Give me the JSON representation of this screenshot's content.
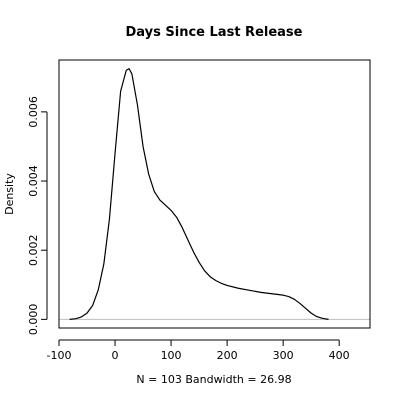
{
  "chart_data": {
    "type": "line",
    "title": "Days Since Last Release",
    "xlabel": "N = 103   Bandwidth = 26.98",
    "ylabel": "Density",
    "xlim": [
      -100,
      455
    ],
    "ylim": [
      -0.00025,
      0.0075
    ],
    "x_ticks": [
      -100,
      0,
      100,
      200,
      300,
      400
    ],
    "x_tick_labels": [
      "-100",
      "0",
      "100",
      "200",
      "300",
      "400"
    ],
    "y_ticks": [
      0.0,
      0.002,
      0.004,
      0.006
    ],
    "y_tick_labels": [
      "0.000",
      "0.002",
      "0.004",
      "0.006"
    ],
    "baseline": 0,
    "baseline_color": "#bebebe",
    "line_color": "#000000",
    "grid": false,
    "series": [
      {
        "x": [
          -81,
          -70,
          -60,
          -50,
          -40,
          -30,
          -20,
          -10,
          0,
          10,
          20,
          25,
          30,
          40,
          50,
          60,
          70,
          80,
          90,
          100,
          110,
          120,
          130,
          140,
          150,
          160,
          170,
          180,
          190,
          200,
          220,
          240,
          260,
          280,
          300,
          310,
          320,
          330,
          340,
          350,
          360,
          370,
          381
        ],
        "y": [
          0.0,
          2e-05,
          7e-05,
          0.00018,
          0.0004,
          0.00085,
          0.0016,
          0.0029,
          0.0048,
          0.0066,
          0.0072,
          0.00725,
          0.0071,
          0.0062,
          0.005,
          0.0042,
          0.0037,
          0.00345,
          0.0033,
          0.00315,
          0.00295,
          0.00265,
          0.0023,
          0.00195,
          0.00165,
          0.0014,
          0.00123,
          0.00112,
          0.00104,
          0.00098,
          0.0009,
          0.00084,
          0.00078,
          0.00074,
          0.0007,
          0.00066,
          0.00058,
          0.00046,
          0.00032,
          0.00018,
          8e-05,
          3e-05,
          0.0
        ]
      }
    ]
  }
}
